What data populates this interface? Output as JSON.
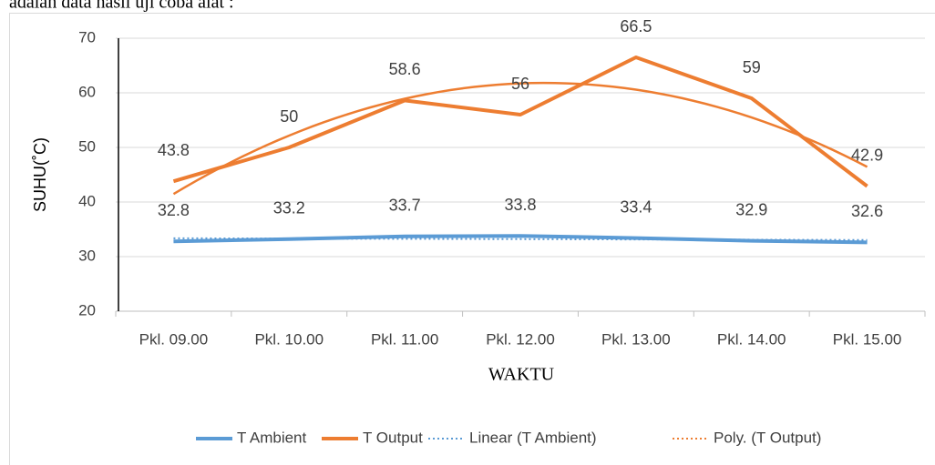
{
  "intro_text": "adalah data hasil uji coba alat :",
  "chart_data": {
    "type": "line",
    "y_label": "SUHU(˚C)",
    "x_label": "WAKTU",
    "categories": [
      "Pkl. 09.00",
      "Pkl. 10.00",
      "Pkl. 11.00",
      "Pkl. 12.00",
      "Pkl. 13.00",
      "Pkl. 14.00",
      "Pkl. 15.00"
    ],
    "series": [
      {
        "name": "T Ambient",
        "color": "#5b9bd5",
        "values": [
          32.8,
          33.2,
          33.7,
          33.8,
          33.4,
          32.9,
          32.6
        ]
      },
      {
        "name": "T Output",
        "color": "#ed7d31",
        "values": [
          43.8,
          50,
          58.6,
          56,
          66.5,
          59,
          42.9
        ]
      }
    ],
    "trendlines": [
      {
        "name": "Linear (T Ambient)",
        "series": 0,
        "order": 1,
        "color": "#5b9bd5"
      },
      {
        "name": "Poly. (T Output)",
        "series": 1,
        "order": 2,
        "color": "#ed7d31"
      }
    ],
    "ylim": [
      20,
      70
    ],
    "yticks": [
      20,
      30,
      40,
      50,
      60,
      70
    ],
    "grid": true,
    "legend": "bottom"
  }
}
